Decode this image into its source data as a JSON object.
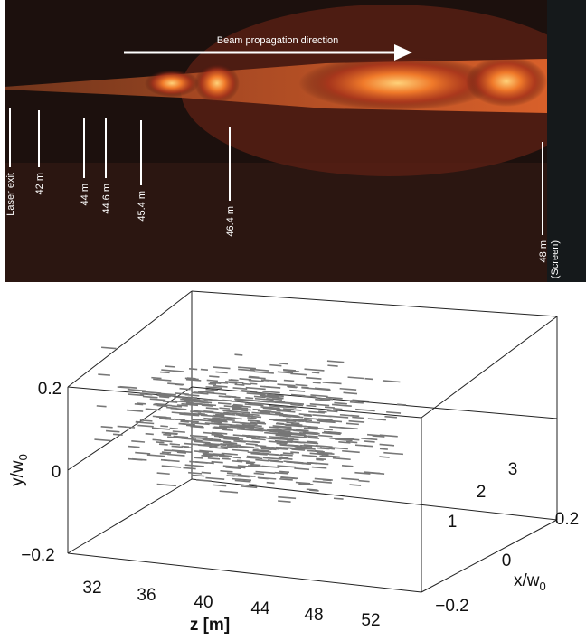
{
  "photo": {
    "title": "Beam propagation direction",
    "markers": [
      "Laser exit",
      "42 m",
      "44 m",
      "44.6 m",
      "45.4 m",
      "46.4 m",
      "48 m",
      "(Screen)"
    ]
  },
  "plot": {
    "y_label": "y/w",
    "y_label_sub": "0",
    "x_label": "x/w",
    "x_label_sub": "0",
    "z_label": "z [m]",
    "y_ticks": [
      "0.2",
      "0",
      "−0.2"
    ],
    "z_ticks": [
      "32",
      "36",
      "40",
      "44",
      "48",
      "52"
    ],
    "x_ticks": [
      "−0.2",
      "0",
      "0.2"
    ],
    "depth_labels": [
      "1",
      "2",
      "3"
    ]
  }
}
